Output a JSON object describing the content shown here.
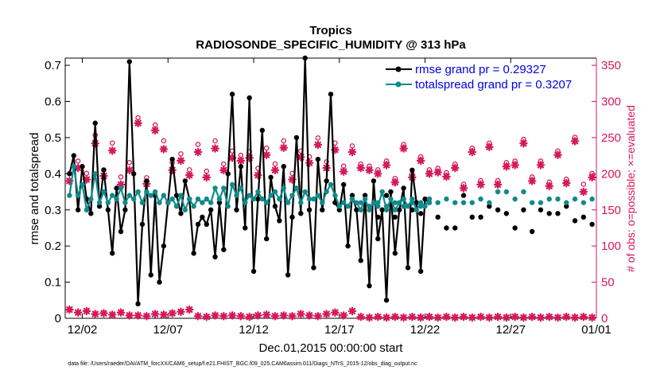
{
  "chart_data": {
    "type": "line",
    "title": "Tropics",
    "subtitle": "RADIOSONDE_SPECIFIC_HUMIDITY @ 313 hPa",
    "xlabel": "Dec.01,2015 00:00:00 start",
    "ylabel": "rmse and totalspread",
    "ylabel_right": "# of obs: o=possible; ×=evaluated",
    "footer": "data file: /Users/raeder/DAI/ATM_forcXX/CAM6_setup/f.e21.FHIST_BGC.f09_025.CAM6assim.011/Diags_NTrS_2015-12/obs_diag_output.nc",
    "xlim": [
      1,
      32
    ],
    "ylim": [
      0,
      0.72
    ],
    "ylim_right": [
      0,
      360
    ],
    "x_ticks": [
      2,
      7,
      12,
      17,
      22,
      27,
      32
    ],
    "x_tick_labels": [
      "12/02",
      "12/07",
      "12/12",
      "12/17",
      "12/22",
      "12/27",
      "01/01"
    ],
    "y_ticks": [
      0,
      0.1,
      0.2,
      0.3,
      0.4,
      0.5,
      0.6,
      0.7
    ],
    "y_tick_labels": [
      "0",
      "0.1",
      "0.2",
      "0.3",
      "0.4",
      "0.5",
      "0.6",
      "0.7"
    ],
    "y_ticks_right": [
      0,
      50,
      100,
      150,
      200,
      250,
      300,
      350
    ],
    "y_tick_labels_right": [
      "0",
      "50",
      "100",
      "150",
      "200",
      "250",
      "300",
      "350"
    ],
    "legend": [
      "rmse grand pr = 0.29327",
      "totalspread grand pr = 0.3207"
    ],
    "legend_position": "top-right",
    "colors": {
      "rmse": "#000000",
      "spread": "#108a8a",
      "obs": "#d6185a",
      "legend_text": "#0000e6"
    },
    "series": [
      {
        "name": "rmse",
        "axis": "left",
        "style": "line-marker",
        "values": [
          0.4,
          0.45,
          0.3,
          0.42,
          0.33,
          0.29,
          0.54,
          0.31,
          0.41,
          0.3,
          0.18,
          0.36,
          0.24,
          0.3,
          0.71,
          0.4,
          0.04,
          0.26,
          0.38,
          0.12,
          0.34,
          0.1,
          0.2,
          0.32,
          0.44,
          0.34,
          0.29,
          0.38,
          0.33,
          0.18,
          0.26,
          0.28,
          0.26,
          0.3,
          0.17,
          0.32,
          0.19,
          0.4,
          0.62,
          0.3,
          0.42,
          0.25,
          0.61,
          0.13,
          0.33,
          0.52,
          0.22,
          0.39,
          0.31,
          0.27,
          0.42,
          0.12,
          0.28,
          0.5,
          0.29,
          0.72,
          0.3,
          0.14,
          0.44,
          0.3,
          0.38,
          0.62,
          0.32,
          0.3,
          0.37,
          0.2,
          0.34,
          0.3,
          0.16,
          0.34,
          0.09,
          0.38,
          0.22,
          0.3,
          0.05,
          0.35,
          0.18,
          0.3,
          0.36,
          0.14,
          0.41,
          0.32,
          0.13,
          0.33,
          0.32
        ],
        "x_start": 1.25,
        "x_step": 0.25
      },
      {
        "name": "rmse_points",
        "axis": "left",
        "style": "marker",
        "x": [
          18.25,
          18.75,
          19.25,
          19.75,
          20.25,
          20.75,
          21.25,
          21.75,
          22.25,
          22.75,
          23.25,
          23.75,
          24.25,
          24.75,
          25.25,
          25.75,
          26.25,
          26.75,
          27.25,
          27.75,
          28.25,
          28.75,
          29.25,
          29.75,
          30.25,
          30.75,
          31.25,
          31.75
        ],
        "values": [
          0.3,
          0.31,
          0.28,
          0.34,
          0.28,
          0.33,
          0.3,
          0.29,
          0.33,
          0.28,
          0.25,
          0.25,
          0.34,
          0.28,
          0.28,
          0.31,
          0.3,
          0.29,
          0.25,
          0.3,
          0.24,
          0.3,
          0.29,
          0.29,
          0.31,
          0.27,
          0.28,
          0.26
        ]
      },
      {
        "name": "totalspread",
        "axis": "left",
        "style": "line-marker",
        "values": [
          0.34,
          0.42,
          0.34,
          0.37,
          0.3,
          0.33,
          0.4,
          0.32,
          0.35,
          0.32,
          0.34,
          0.33,
          0.36,
          0.32,
          0.34,
          0.33,
          0.35,
          0.32,
          0.35,
          0.34,
          0.35,
          0.32,
          0.34,
          0.32,
          0.33,
          0.31,
          0.34,
          0.3,
          0.33,
          0.31,
          0.33,
          0.32,
          0.33,
          0.32,
          0.36,
          0.33,
          0.36,
          0.31,
          0.37,
          0.34,
          0.36,
          0.32,
          0.34,
          0.33,
          0.35,
          0.33,
          0.32,
          0.34,
          0.35,
          0.33,
          0.36,
          0.32,
          0.34,
          0.36,
          0.32,
          0.35,
          0.33,
          0.33,
          0.34,
          0.32,
          0.35,
          0.37,
          0.34,
          0.31,
          0.32,
          0.31,
          0.33,
          0.32,
          0.3,
          0.33,
          0.3,
          0.32,
          0.31,
          0.35,
          0.3,
          0.33,
          0.3,
          0.32,
          0.33,
          0.31,
          0.33,
          0.3,
          0.32,
          0.31,
          0.33
        ],
        "x_start": 1.25,
        "x_step": 0.25
      },
      {
        "name": "totalspread_points",
        "axis": "left",
        "style": "marker",
        "x": [
          18.25,
          18.75,
          19.25,
          19.75,
          20.25,
          20.75,
          21.25,
          21.75,
          22.25,
          22.75,
          23.25,
          23.75,
          24.25,
          24.75,
          25.25,
          25.75,
          26.25,
          26.75,
          27.25,
          27.75,
          28.25,
          28.75,
          29.25,
          29.75,
          30.25,
          30.75,
          31.25,
          31.75
        ],
        "values": [
          0.32,
          0.31,
          0.32,
          0.31,
          0.32,
          0.31,
          0.32,
          0.31,
          0.32,
          0.32,
          0.33,
          0.32,
          0.32,
          0.32,
          0.33,
          0.32,
          0.35,
          0.35,
          0.33,
          0.35,
          0.32,
          0.32,
          0.33,
          0.33,
          0.32,
          0.33,
          0.32,
          0.33
        ]
      },
      {
        "name": "obs_possible",
        "axis": "right",
        "style": "marker",
        "x": [
          1.25,
          1.75,
          2.25,
          2.75,
          3.25,
          3.75,
          4.25,
          4.75,
          5.25,
          5.75,
          6.25,
          6.75,
          7.25,
          7.75,
          8.25,
          8.75,
          9.25,
          9.75,
          10.25,
          10.75,
          11.25,
          11.75,
          12.25,
          12.75,
          13.25,
          13.75,
          14.25,
          14.75,
          15.25,
          15.75,
          16.25,
          16.75,
          17.25,
          17.75,
          18.25,
          18.75,
          19.25,
          19.75,
          20.25,
          20.75,
          21.25,
          21.75,
          22.25,
          22.75,
          23.25,
          23.75,
          24.25,
          24.75,
          25.25,
          25.75,
          26.25,
          26.75,
          27.25,
          27.75,
          28.25,
          28.75,
          29.25,
          29.75,
          30.25,
          30.75,
          31.25,
          31.75
        ],
        "values": [
          195,
          212,
          195,
          248,
          200,
          237,
          190,
          210,
          272,
          189,
          262,
          240,
          210,
          222,
          200,
          235,
          198,
          240,
          208,
          226,
          220,
          225,
          202,
          230,
          208,
          240,
          195,
          226,
          218,
          244,
          211,
          237,
          205,
          233,
          208,
          205,
          200,
          212,
          188,
          235,
          195,
          218,
          200,
          202,
          196,
          208,
          180,
          230,
          185,
          237,
          185,
          210,
          212,
          242,
          190,
          212,
          183,
          226,
          187,
          245,
          180,
          195
        ]
      },
      {
        "name": "obs_evaluated",
        "axis": "right",
        "style": "marker",
        "x": [
          1.25,
          1.75,
          2.25,
          2.75,
          3.25,
          3.75,
          4.25,
          4.75,
          5.25,
          5.75,
          6.25,
          6.75,
          7.25,
          7.75,
          8.25,
          8.75,
          9.25,
          9.75,
          10.25,
          10.75,
          11.25,
          11.75,
          12.25,
          12.75,
          13.25,
          13.75,
          14.25,
          14.75,
          15.25,
          15.75,
          16.25,
          16.75,
          17.25,
          17.75,
          18.25,
          18.75,
          19.25,
          19.75,
          20.25,
          20.75,
          21.25,
          21.75,
          22.25,
          22.75,
          23.25,
          23.75,
          24.25,
          24.75,
          25.25,
          25.75,
          26.25,
          26.75,
          27.25,
          27.75,
          28.25,
          28.75,
          29.25,
          29.75,
          30.25,
          30.75,
          31.25,
          31.75
        ],
        "values": [
          190,
          208,
          192,
          242,
          197,
          232,
          185,
          205,
          270,
          186,
          260,
          234,
          205,
          218,
          198,
          230,
          195,
          235,
          205,
          222,
          218,
          222,
          198,
          226,
          205,
          236,
          192,
          223,
          215,
          240,
          208,
          233,
          203,
          230,
          208,
          205,
          200,
          212,
          188,
          235,
          195,
          218,
          200,
          202,
          196,
          208,
          180,
          230,
          185,
          237,
          185,
          210,
          212,
          242,
          190,
          212,
          183,
          226,
          187,
          245,
          175,
          195
        ]
      },
      {
        "name": "obs_low_possible",
        "axis": "right",
        "style": "marker",
        "x": [
          1.25,
          1.75,
          2.25,
          2.75,
          3.25,
          3.75,
          4.25,
          4.75,
          5.25,
          5.75,
          6.25,
          6.75,
          7.25,
          7.75,
          8.25,
          8.75,
          9.25,
          9.75,
          10.25,
          10.75,
          11.25,
          11.75,
          12.25,
          12.75,
          13.25,
          13.75,
          14.25,
          14.75,
          15.25,
          15.75,
          16.25,
          16.75,
          17.25,
          17.75,
          18.25,
          18.75,
          19.25,
          19.75,
          20.25,
          20.75,
          21.25,
          21.75,
          22.25,
          22.75,
          23.25,
          23.75,
          24.25,
          24.75,
          25.25,
          25.75,
          26.25,
          26.75,
          27.25,
          27.75,
          28.25,
          28.75,
          29.25,
          29.75,
          30.25,
          30.75,
          31.25,
          31.75
        ],
        "values": [
          12,
          8,
          10,
          6,
          7,
          5,
          8,
          4,
          4,
          3,
          6,
          5,
          7,
          9,
          12,
          3,
          2,
          4,
          3,
          4,
          3,
          2,
          4,
          5,
          3,
          4,
          3,
          6,
          4,
          3,
          6,
          8,
          4,
          10,
          2,
          1,
          2,
          1,
          2,
          1,
          2,
          1,
          2,
          1,
          2,
          1,
          2,
          1,
          2,
          1,
          2,
          1,
          2,
          1,
          2,
          1,
          2,
          1,
          2,
          1,
          2,
          1
        ]
      }
    ]
  }
}
